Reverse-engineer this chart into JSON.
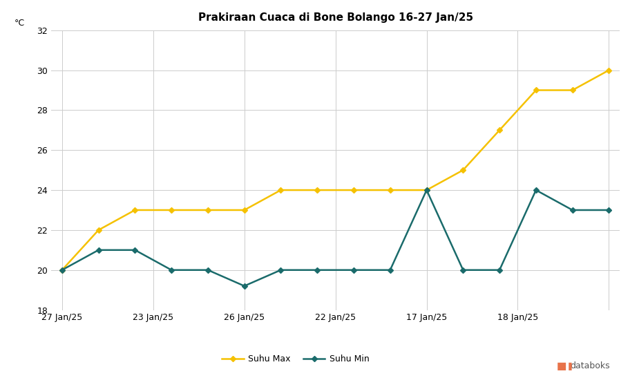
{
  "title": "Prakiraan Cuaca di Bone Bolango 16-27 Jan/25",
  "ylabel": "°C",
  "ylim": [
    18,
    32
  ],
  "yticks": [
    18,
    20,
    22,
    24,
    26,
    28,
    30,
    32
  ],
  "n_points": 16,
  "xtick_positions": [
    0,
    2.5,
    5,
    7.5,
    10,
    12.5,
    15
  ],
  "xtick_labels": [
    "27 Jan/25",
    "23 Jan/25",
    "26 Jan/25",
    "22 Jan/25",
    "17 Jan/25",
    "18 Jan/25",
    ""
  ],
  "suhu_max": [
    20,
    22,
    23,
    23,
    23,
    23,
    24,
    24,
    24,
    24,
    24,
    25,
    27,
    29,
    29,
    30
  ],
  "suhu_min": [
    20,
    21,
    21,
    20,
    20,
    19.2,
    20,
    20,
    20,
    20,
    24,
    20,
    20,
    24,
    23,
    23
  ],
  "color_max": "#F5C100",
  "color_min": "#1A6B6B",
  "marker_max": "D",
  "marker_min": "D",
  "marker_size": 4,
  "line_width": 1.8,
  "background_color": "#FFFFFF",
  "grid_color": "#CCCCCC",
  "legend_labels": [
    "Suhu Max",
    "Suhu Min"
  ],
  "watermark_text": "databoks",
  "watermark_color_icon": "#E8734A",
  "watermark_color_text": "#555555",
  "title_fontsize": 11,
  "axis_fontsize": 9,
  "tick_fontsize": 9
}
